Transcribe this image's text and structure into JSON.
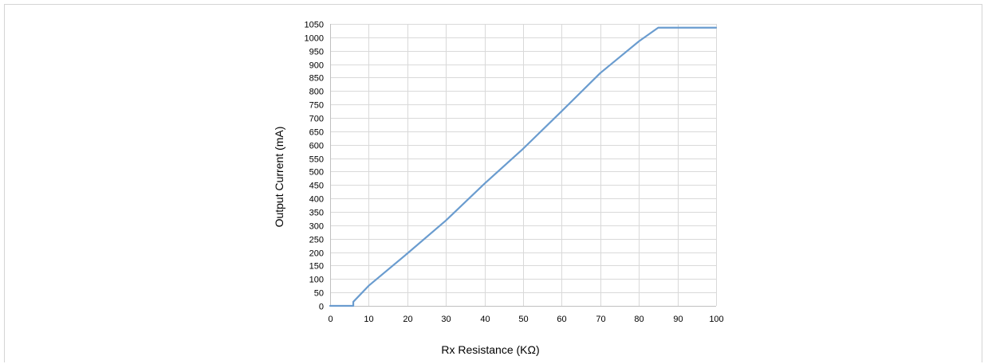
{
  "chart_data": {
    "type": "line",
    "title": "",
    "xlabel": "Rx Resistance (KΩ)",
    "ylabel": "Output Current (mA)",
    "xlim": [
      0,
      100
    ],
    "ylim": [
      0,
      1050
    ],
    "x_ticks": [
      "0",
      "10",
      "20",
      "30",
      "40",
      "50",
      "60",
      "70",
      "80",
      "90",
      "100"
    ],
    "y_ticks": [
      "0",
      "50",
      "100",
      "150",
      "200",
      "250",
      "300",
      "350",
      "400",
      "450",
      "500",
      "550",
      "600",
      "650",
      "700",
      "750",
      "800",
      "850",
      "900",
      "950",
      "1000",
      "1050"
    ],
    "grid": true,
    "line_color": "#6a9ccf",
    "series": [
      {
        "x": [
          0,
          6,
          6,
          10,
          20,
          30,
          40,
          50,
          60,
          70,
          80,
          85,
          90,
          100
        ],
        "y": [
          0,
          0,
          15,
          75,
          195,
          318,
          455,
          585,
          725,
          867,
          985,
          1036,
          1036,
          1036
        ]
      }
    ]
  }
}
